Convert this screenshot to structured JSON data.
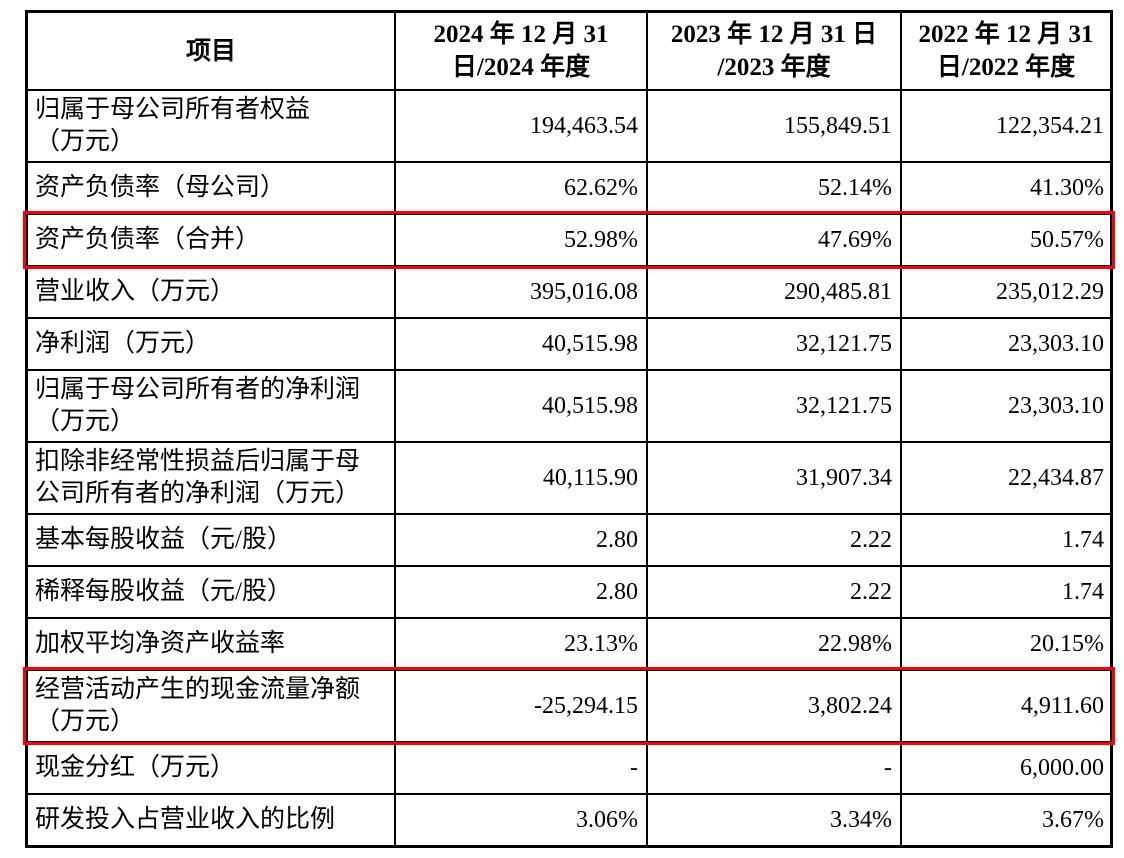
{
  "table": {
    "highlight_color": "#ff0000",
    "border_color": "#000000",
    "columns": [
      {
        "label": "项目"
      },
      {
        "label": "2024 年 12 月 31\n日/2024 年度"
      },
      {
        "label": "2023 年 12 月 31 日\n/2023 年度"
      },
      {
        "label": "2022 年 12 月 31\n日/2022 年度"
      }
    ],
    "rows": [
      {
        "label": "归属于母公司所有者权益\n（万元）",
        "values": [
          "194,463.54",
          "155,849.51",
          "122,354.21"
        ],
        "highlight": false
      },
      {
        "label": "资产负债率（母公司）",
        "values": [
          "62.62%",
          "52.14%",
          "41.30%"
        ],
        "highlight": false
      },
      {
        "label": "资产负债率（合并）",
        "values": [
          "52.98%",
          "47.69%",
          "50.57%"
        ],
        "highlight": true
      },
      {
        "label": "营业收入（万元）",
        "values": [
          "395,016.08",
          "290,485.81",
          "235,012.29"
        ],
        "highlight": false
      },
      {
        "label": "净利润（万元）",
        "values": [
          "40,515.98",
          "32,121.75",
          "23,303.10"
        ],
        "highlight": false
      },
      {
        "label": "归属于母公司所有者的净利润\n（万元）",
        "values": [
          "40,515.98",
          "32,121.75",
          "23,303.10"
        ],
        "highlight": false
      },
      {
        "label": "扣除非经常性损益后归属于母\n公司所有者的净利润（万元）",
        "values": [
          "40,115.90",
          "31,907.34",
          "22,434.87"
        ],
        "highlight": false
      },
      {
        "label": "基本每股收益（元/股）",
        "values": [
          "2.80",
          "2.22",
          "1.74"
        ],
        "highlight": false
      },
      {
        "label": "稀释每股收益（元/股）",
        "values": [
          "2.80",
          "2.22",
          "1.74"
        ],
        "highlight": false
      },
      {
        "label": "加权平均净资产收益率",
        "values": [
          "23.13%",
          "22.98%",
          "20.15%"
        ],
        "highlight": false
      },
      {
        "label": "经营活动产生的现金流量净额\n（万元）",
        "values": [
          "-25,294.15",
          "3,802.24",
          "4,911.60"
        ],
        "highlight": true
      },
      {
        "label": "现金分红（万元）",
        "values": [
          "-",
          "-",
          "6,000.00"
        ],
        "highlight": false
      },
      {
        "label": "研发投入占营业收入的比例",
        "values": [
          "3.06%",
          "3.34%",
          "3.67%"
        ],
        "highlight": false
      }
    ]
  }
}
